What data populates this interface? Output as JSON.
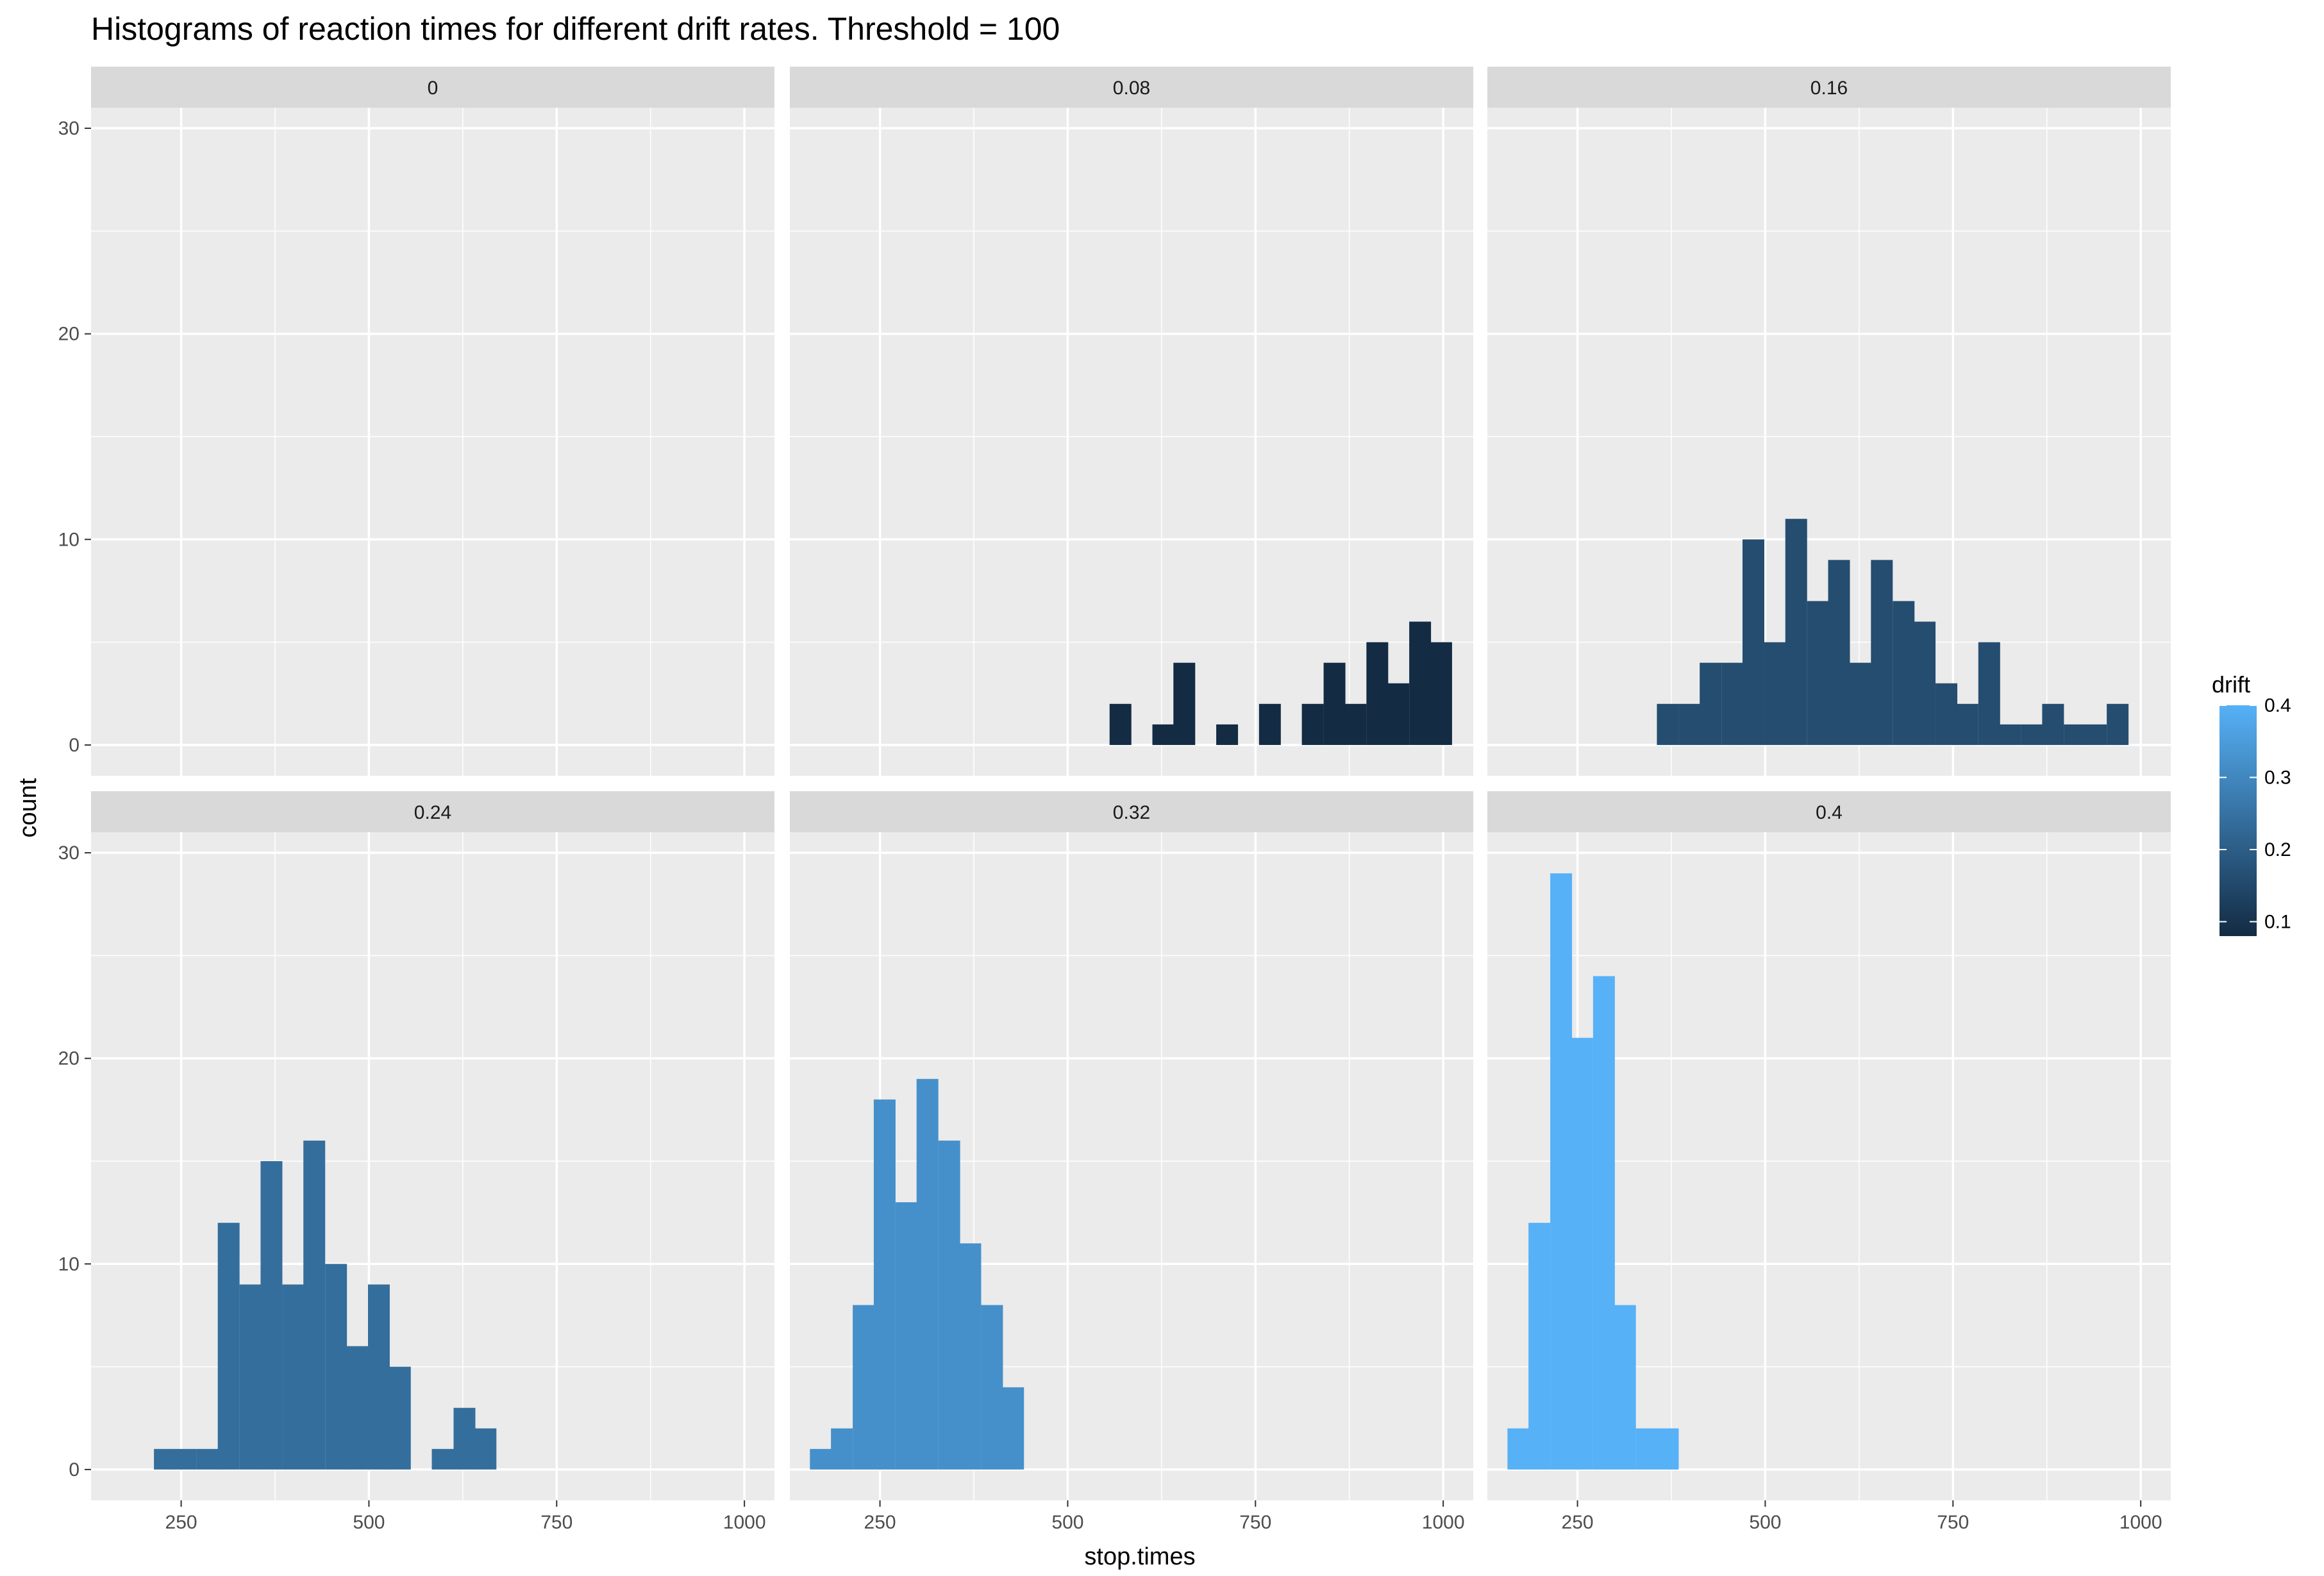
{
  "chart_data": {
    "type": "bar",
    "title": "Histograms of reaction times for different drift rates. Threshold = 100",
    "xlabel": "stop.times",
    "ylabel": "count",
    "xlim": [
      130,
      1040
    ],
    "ylim": [
      -1.5,
      31
    ],
    "x_ticks": [
      250,
      500,
      750,
      1000
    ],
    "x_tick_labels": [
      "250",
      "500",
      "750",
      "1000"
    ],
    "y_ticks": [
      0,
      10,
      20,
      30
    ],
    "y_tick_labels": [
      "0",
      "10",
      "20",
      "30"
    ],
    "bin_width": 28.5,
    "grid": true,
    "legend": {
      "title": "drift",
      "position": "right",
      "ticks": [
        0.1,
        0.2,
        0.3,
        0.4
      ],
      "tick_labels": [
        "0.1",
        "0.2",
        "0.3",
        "0.4"
      ],
      "range": [
        0.08,
        0.4
      ],
      "low_color": "#132B43",
      "high_color": "#56B1F7"
    },
    "colors": {
      "panel_bg": "#ebebeb",
      "grid": "#ffffff",
      "strip_bg": "#d9d9d9"
    },
    "panels": [
      {
        "label": "0",
        "drift": 0,
        "bins": []
      },
      {
        "label": "0.08",
        "drift": 0.08,
        "bins": [
          [
            570,
            2
          ],
          [
            627,
            1
          ],
          [
            655,
            4
          ],
          [
            712,
            1
          ],
          [
            769,
            2
          ],
          [
            826,
            2
          ],
          [
            855,
            4
          ],
          [
            883,
            2
          ],
          [
            912,
            5
          ],
          [
            940,
            3
          ],
          [
            969,
            6
          ],
          [
            997,
            5
          ]
        ]
      },
      {
        "label": "0.16",
        "drift": 0.16,
        "bins": [
          [
            370,
            2
          ],
          [
            399,
            2
          ],
          [
            427,
            4
          ],
          [
            456,
            4
          ],
          [
            484,
            10
          ],
          [
            513,
            5
          ],
          [
            541,
            11
          ],
          [
            570,
            7
          ],
          [
            598,
            9
          ],
          [
            627,
            4
          ],
          [
            655,
            9
          ],
          [
            684,
            7
          ],
          [
            712,
            6
          ],
          [
            741,
            3
          ],
          [
            769,
            2
          ],
          [
            798,
            5
          ],
          [
            826,
            1
          ],
          [
            855,
            1
          ],
          [
            883,
            2
          ],
          [
            912,
            1
          ],
          [
            940,
            1
          ],
          [
            969,
            2
          ]
        ]
      },
      {
        "label": "0.24",
        "drift": 0.24,
        "bins": [
          [
            228,
            1
          ],
          [
            256,
            1
          ],
          [
            285,
            1
          ],
          [
            313,
            12
          ],
          [
            342,
            9
          ],
          [
            370,
            15
          ],
          [
            399,
            9
          ],
          [
            427,
            16
          ],
          [
            456,
            10
          ],
          [
            484,
            6
          ],
          [
            513,
            9
          ],
          [
            541,
            5
          ],
          [
            598,
            1
          ],
          [
            627,
            3
          ],
          [
            655,
            2
          ]
        ]
      },
      {
        "label": "0.32",
        "drift": 0.32,
        "bins": [
          [
            171,
            1
          ],
          [
            199,
            2
          ],
          [
            228,
            8
          ],
          [
            256,
            18
          ],
          [
            285,
            13
          ],
          [
            313,
            19
          ],
          [
            342,
            16
          ],
          [
            370,
            11
          ],
          [
            399,
            8
          ],
          [
            427,
            4
          ]
        ]
      },
      {
        "label": "0.4",
        "drift": 0.4,
        "bins": [
          [
            171,
            2
          ],
          [
            199,
            12
          ],
          [
            228,
            29
          ],
          [
            256,
            21
          ],
          [
            285,
            24
          ],
          [
            313,
            8
          ],
          [
            342,
            2
          ],
          [
            370,
            2
          ]
        ]
      }
    ]
  }
}
